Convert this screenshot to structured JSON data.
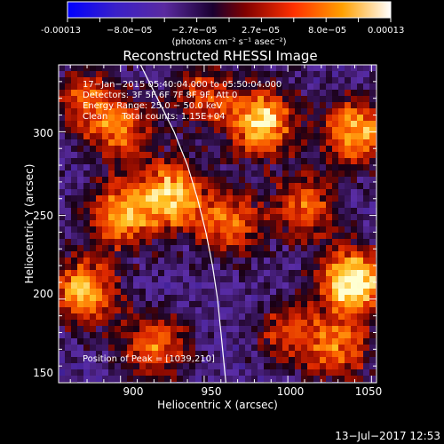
{
  "colorbar": {
    "ticks": [
      "-0.00013",
      "−8.0e−05",
      "−2.7e−05",
      "2.7e−05",
      "8.0e−05",
      "0.00013"
    ],
    "units": "(photons cm⁻² s⁻¹ asec⁻²)",
    "range": [
      -0.00013,
      0.00013
    ],
    "colormap": [
      "#0000ff",
      "#5a2aa0",
      "#2a0040",
      "#800000",
      "#ff3a00",
      "#ffb000",
      "#ffffff"
    ]
  },
  "header": {
    "line1": "17−Jan−2015 05:40:04.000 to 05:50:04.000",
    "line2": "Detectors: 3F 5F 6F 7F 8F 9F, Att 0",
    "line3": "Energy Range: 25.0 − 50.0 keV",
    "line4": "Clean     Total counts: 1.15E+04"
  },
  "footer": {
    "peak": "Position of Peak = [1039,210]",
    "date": "13−Jul−2017 12:53"
  },
  "chart_data": {
    "type": "heatmap",
    "title": "Reconstructed RHESSI Image",
    "xlabel": "Heliocentric X (arcsec)",
    "ylabel": "Heliocentric Y (arcsec)",
    "xlim": [
      863,
      1053
    ],
    "ylim": [
      150,
      340
    ],
    "xticks": [
      "900",
      "950",
      "1000",
      "1050"
    ],
    "yticks": [
      "150",
      "200",
      "250",
      "300"
    ],
    "xtick_values": [
      900,
      950,
      1000,
      1050
    ],
    "ytick_values": [
      150,
      200,
      250,
      300
    ],
    "peak": [
      1039,
      210
    ],
    "limb_curve": [
      [
        912,
        340
      ],
      [
        922,
        320
      ],
      [
        932,
        300
      ],
      [
        940,
        280
      ],
      [
        946,
        260
      ],
      [
        951,
        240
      ],
      [
        955,
        220
      ],
      [
        958,
        200
      ],
      [
        960,
        180
      ],
      [
        962,
        160
      ],
      [
        963,
        150
      ]
    ],
    "hot_regions": [
      {
        "x": 1039,
        "y": 210,
        "intensity": 1.0
      },
      {
        "x": 985,
        "y": 305,
        "intensity": 0.85
      },
      {
        "x": 1040,
        "y": 300,
        "intensity": 0.75
      },
      {
        "x": 930,
        "y": 262,
        "intensity": 0.8
      },
      {
        "x": 900,
        "y": 250,
        "intensity": 0.7
      },
      {
        "x": 878,
        "y": 205,
        "intensity": 0.75
      },
      {
        "x": 920,
        "y": 172,
        "intensity": 0.6
      },
      {
        "x": 965,
        "y": 245,
        "intensity": 0.6
      },
      {
        "x": 1010,
        "y": 255,
        "intensity": 0.55
      },
      {
        "x": 1030,
        "y": 170,
        "intensity": 0.55
      },
      {
        "x": 900,
        "y": 300,
        "intensity": 0.55
      },
      {
        "x": 950,
        "y": 322,
        "intensity": 0.5
      },
      {
        "x": 880,
        "y": 320,
        "intensity": 0.5
      },
      {
        "x": 1000,
        "y": 180,
        "intensity": 0.45
      }
    ]
  }
}
